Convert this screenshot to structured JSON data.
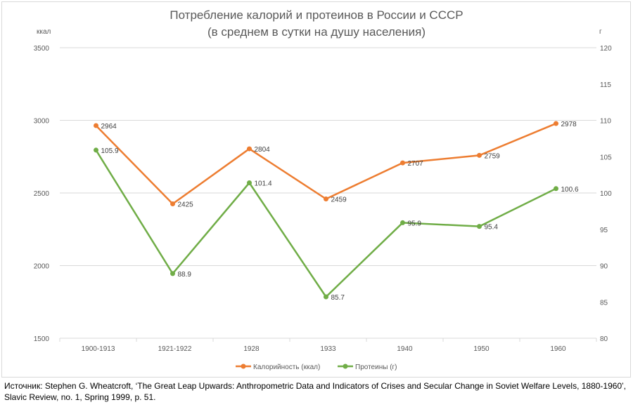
{
  "chart_data": {
    "type": "line",
    "title": "Потребление калорий и протеинов в России и СССР",
    "subtitle": "(в среднем в сутки на душу населения)",
    "ylabel_left": "ккал",
    "ylabel_right": "г",
    "categories": [
      "1900-1913",
      "1921-1922",
      "1928",
      "1933",
      "1940",
      "1950",
      "1960"
    ],
    "y_left": {
      "lim": [
        1500,
        3500
      ],
      "ticks": [
        "1500",
        "2000",
        "2500",
        "3000",
        "3500"
      ]
    },
    "y_right": {
      "lim": [
        80,
        120
      ],
      "ticks": [
        "80",
        "85",
        "90",
        "95",
        "100",
        "105",
        "110",
        "115",
        "120"
      ]
    },
    "grid": true,
    "legend_position": "bottom",
    "series": [
      {
        "name": "Калорийность (ккал)",
        "axis": "left",
        "color": "#ED7D31",
        "values": [
          2964,
          2425,
          2804,
          2459,
          2707,
          2759,
          2978
        ],
        "labels": [
          "2964",
          "2425",
          "2804",
          "2459",
          "2707",
          "2759",
          "2978"
        ]
      },
      {
        "name": "Протеины (г)",
        "axis": "right",
        "color": "#70AD47",
        "values": [
          105.9,
          88.9,
          101.4,
          85.7,
          95.9,
          95.4,
          100.6
        ],
        "labels": [
          "105.9",
          "88.9",
          "101.4",
          "85.7",
          "95.9",
          "95.4",
          "100.6"
        ]
      }
    ]
  },
  "source": "Источник: Stephen G. Wheatcroft, ‘The Great Leap Upwards: Anthropometric Data and Indicators of Crises and Secular Change in Soviet Welfare Levels, 1880-1960’, Slavic Review, no. 1, Spring 1999, p. 51."
}
